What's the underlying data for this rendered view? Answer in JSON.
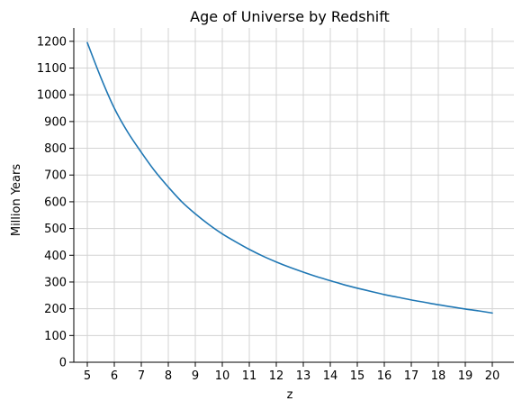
{
  "chart_data": {
    "type": "line",
    "title": "Age of Universe by Redshift",
    "xlabel": "z",
    "ylabel": "Million Years",
    "xlim": [
      4.5,
      20.8
    ],
    "ylim": [
      0,
      1250
    ],
    "xticks": [
      5,
      6,
      7,
      8,
      9,
      10,
      11,
      12,
      13,
      14,
      15,
      16,
      17,
      18,
      19,
      20
    ],
    "yticks": [
      0,
      100,
      200,
      300,
      400,
      500,
      600,
      700,
      800,
      900,
      1000,
      1100,
      1200
    ],
    "grid": true,
    "series": [
      {
        "color": "#1f77b4",
        "x": [
          5,
          5.5,
          6,
          6.5,
          7,
          7.5,
          8,
          8.5,
          9,
          9.5,
          10,
          10.5,
          11,
          11.5,
          12,
          12.5,
          13,
          13.5,
          14,
          14.5,
          15,
          15.5,
          16,
          16.5,
          17,
          17.5,
          18,
          18.5,
          19,
          19.5,
          20
        ],
        "y": [
          1195,
          1065,
          950,
          860,
          785,
          715,
          655,
          600,
          555,
          515,
          480,
          450,
          422,
          397,
          375,
          355,
          337,
          320,
          305,
          290,
          277,
          265,
          253,
          243,
          233,
          224,
          215,
          207,
          199,
          192,
          184
        ]
      }
    ]
  }
}
